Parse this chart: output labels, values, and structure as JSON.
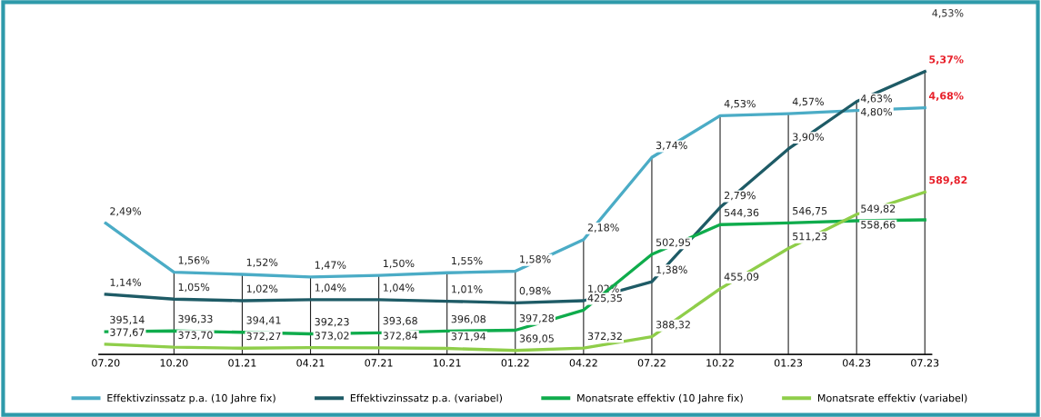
{
  "chart_data": {
    "type": "line",
    "categories": [
      "07.20",
      "10.20",
      "01.21",
      "04.21",
      "07.21",
      "10.21",
      "01.22",
      "04.22",
      "07.22",
      "10.22",
      "01.23",
      "04.23",
      "07.23"
    ],
    "series": [
      {
        "name": "Effektivzinssatz p.a. (10 Jahre fix)",
        "color": "#4bacc6",
        "axis": "y",
        "values": [
          2.49,
          1.56,
          1.52,
          1.47,
          1.5,
          1.55,
          1.58,
          2.18,
          3.74,
          4.53,
          4.57,
          4.63,
          4.68
        ],
        "value_labels": [
          "2,49%",
          "1,56%",
          "1,52%",
          "1,47%",
          "1,50%",
          "1,55%",
          "1,58%",
          "2,18%",
          "3,74%",
          "4,53%",
          "4,57%",
          "4,63%",
          "4,68%"
        ]
      },
      {
        "name": "Effektivzinssatz p.a. (variabel)",
        "color": "#1e5b66",
        "axis": "y",
        "values": [
          1.14,
          1.05,
          1.02,
          1.04,
          1.04,
          1.01,
          0.98,
          1.02,
          1.38,
          2.79,
          3.9,
          4.8,
          5.37
        ],
        "value_labels": [
          "1,14%",
          "1,05%",
          "1,02%",
          "1,04%",
          "1,04%",
          "1,01%",
          "0,98%",
          "1,02%",
          "1,38%",
          "2,79%",
          "3,90%",
          "4,80%",
          "5,37%"
        ]
      },
      {
        "name": "Monatsrate effektiv (10 Jahre fix)",
        "color": "#0fac4c",
        "axis": "y2",
        "values": [
          395.14,
          396.33,
          394.41,
          392.23,
          393.68,
          396.08,
          397.28,
          425.35,
          502.95,
          544.36,
          546.75,
          549.82,
          551
        ],
        "value_labels": [
          "395,14",
          "396,33",
          "394,41",
          "392,23",
          "393,68",
          "396,08",
          "397,28",
          "425,35",
          "502,95",
          "544,36",
          "546,75",
          "549,82",
          null
        ]
      },
      {
        "name": "Monatsrate effektiv (variabel)",
        "color": "#8fce4a",
        "axis": "y2",
        "values": [
          377.67,
          373.7,
          372.27,
          373.02,
          372.84,
          371.94,
          369.05,
          372.32,
          388.32,
          455.09,
          511.23,
          558.66,
          589.82
        ],
        "value_labels": [
          "377,67",
          "373,70",
          "372,27",
          "373,02",
          "372,84",
          "371,94",
          "369,05",
          "372,32",
          "388,32",
          "455,09",
          "511,23",
          "558,66",
          "589,82"
        ]
      }
    ],
    "tick_labels": "x",
    "annotations": [
      "4,53%"
    ],
    "legend": "bottom",
    "grid": "x",
    "marker": "none",
    "line_style": "solid"
  }
}
